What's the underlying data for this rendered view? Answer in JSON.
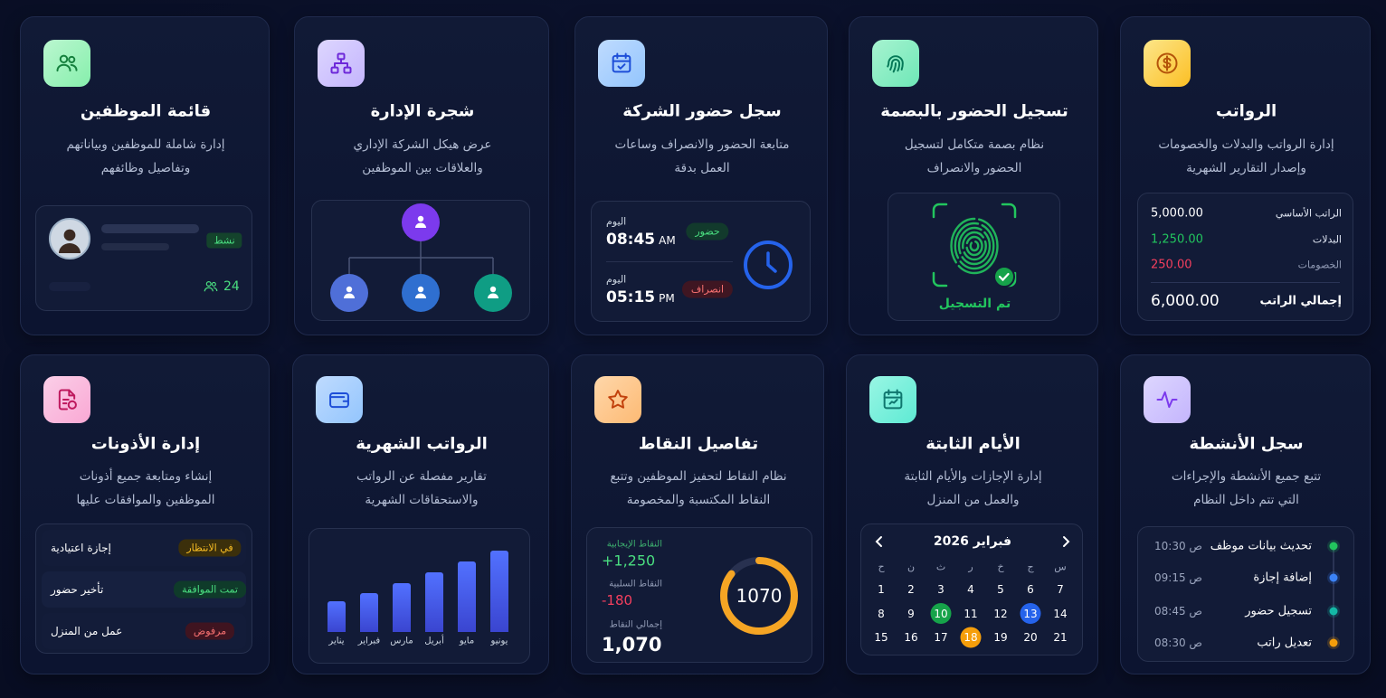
{
  "cards": [
    {
      "title": "الرواتب",
      "description": [
        "إدارة الرواتب والبدلات والخصومات",
        "وإصدار التقارير الشهرية"
      ],
      "icon_colors": [
        "#fde68a",
        "#fbbf24",
        "#b45309"
      ],
      "widget": {
        "kind": "salary",
        "rows": [
          {
            "label": "الراتب الأساسي",
            "value": "5,000.00",
            "color": "#ffffff"
          },
          {
            "label": "البدلات",
            "value": "1,250.00",
            "color": "#22c55e"
          },
          {
            "label": "الخصومات",
            "value": "250.00",
            "color": "#f43f5e"
          }
        ],
        "total": {
          "label": "إجمالي الراتب",
          "value": "6,000.00"
        }
      }
    },
    {
      "title": "تسجيل الحضور بالبصمة",
      "description": [
        "نظام بصمة متكامل لتسجيل",
        "الحضور والانصراف"
      ],
      "icon_colors": [
        "#a7f3d0",
        "#6ee7b7",
        "#047857"
      ],
      "widget": {
        "kind": "fingerprint",
        "status": "تم التسجيل",
        "color": "#22c55e"
      }
    },
    {
      "title": "سجل حضور الشركة",
      "description": [
        "متابعة الحضور والانصراف وساعات",
        "العمل بدقة"
      ],
      "icon_colors": [
        "#bfdbfe",
        "#93c5fd",
        "#1d4ed8"
      ],
      "widget": {
        "kind": "attendance",
        "entries": [
          {
            "day": "اليوم",
            "time": "08:45",
            "period": "AM",
            "status": "حضور",
            "status_color": "#4ade80",
            "status_bg": "#123a2c"
          },
          {
            "day": "اليوم",
            "time": "05:15",
            "period": "PM",
            "status": "انصراف",
            "status_color": "#f87171",
            "status_bg": "#3f1622"
          }
        ],
        "clock_color": "#2563eb"
      }
    },
    {
      "title": "شجرة الإدارة",
      "description": [
        "عرض هيكل الشركة الإداري",
        "والعلاقات بين الموظفين"
      ],
      "icon_colors": [
        "#ddd6fe",
        "#c4b5fd",
        "#6d28d9"
      ],
      "widget": {
        "kind": "tree",
        "root_color": "#7c3aed",
        "child_colors": [
          "#4f6fd8",
          "#2f6fd0",
          "#0f9d84"
        ]
      }
    },
    {
      "title": "قائمة الموظفين",
      "description": [
        "إدارة شاملة للموظفين وبياناتهم",
        "وتفاصيل وظائفهم"
      ],
      "icon_colors": [
        "#bbf7d0",
        "#86efac",
        "#15803d"
      ],
      "widget": {
        "kind": "employees",
        "status": "نشط",
        "count": 24,
        "color": "#4ade80"
      }
    },
    {
      "title": "سجل الأنشطة",
      "description": [
        "تتبع جميع الأنشطة والإجراءات",
        "التي تتم داخل النظام"
      ],
      "icon_colors": [
        "#ddd6fe",
        "#c4b5fd",
        "#7c3aed"
      ],
      "widget": {
        "kind": "activity",
        "items": [
          {
            "text": "تحديث بيانات موظف",
            "time": "ص 10:30",
            "color": "#22c55e"
          },
          {
            "text": "إضافة إجازة",
            "time": "ص 09:15",
            "color": "#3b82f6"
          },
          {
            "text": "تسجيل حضور",
            "time": "ص 08:45",
            "color": "#14b8a6"
          },
          {
            "text": "تعديل راتب",
            "time": "ص 08:30",
            "color": "#f59e0b"
          }
        ]
      }
    },
    {
      "title": "الأيام الثابتة",
      "description": [
        "إدارة الإجازات والأيام الثابتة",
        "والعمل من المنزل"
      ],
      "icon_colors": [
        "#99f6e4",
        "#5eead4",
        "#0f766e"
      ],
      "widget": {
        "kind": "calendar",
        "month": "فبراير 2026",
        "weekdays": [
          "ح",
          "ن",
          "ث",
          "ر",
          "خ",
          "ج",
          "س"
        ],
        "days": [
          1,
          2,
          3,
          4,
          5,
          6,
          7,
          8,
          9,
          {
            "day": 10,
            "color": "#16a34a"
          },
          11,
          12,
          {
            "day": 13,
            "color": "#2563eb"
          },
          14,
          15,
          16,
          17,
          {
            "day": 18,
            "color": "#f59e0b"
          },
          19,
          20,
          21
        ]
      }
    },
    {
      "title": "تفاصيل النقاط",
      "description": [
        "نظام النقاط لتحفيز الموظفين وتتبع",
        "النقاط المكتسبة والمخصومة"
      ],
      "icon_colors": [
        "#fed7aa",
        "#fdba74",
        "#c2410c"
      ],
      "widget": {
        "kind": "points",
        "positive": {
          "label": "النقاط الإيجابية",
          "value": {
            "value": 1250,
            "label": "+1,250"
          },
          "color": "#4ade80"
        },
        "negative": {
          "label": "النقاط السلبية",
          "value": -180,
          "color": "#f43f5e"
        },
        "total": {
          "label": "إجمالي النقاط",
          "value": {
            "value": 1070,
            "label": "1,070"
          }
        },
        "ring_color": "#f5a524"
      }
    },
    {
      "title": "الرواتب الشهرية",
      "description": [
        "تقارير مفصلة عن الرواتب",
        "والاستحقاقات الشهرية"
      ],
      "icon_colors": [
        "#bfdbfe",
        "#93c5fd",
        "#1d4ed8"
      ],
      "widget": {
        "kind": "monthly",
        "categories": [
          "يناير",
          "فبراير",
          "مارس",
          "أبريل",
          "مايو",
          "يونيو"
        ],
        "values": [
          35,
          44,
          56,
          68,
          80,
          93
        ],
        "ylim": [
          0,
          100
        ],
        "color": "#5271ff"
      }
    },
    {
      "title": "إدارة الأذونات",
      "description": [
        "إنشاء ومتابعة جميع أذونات",
        "الموظفين والموافقات عليها"
      ],
      "icon_colors": [
        "#fbcfe8",
        "#f9a8d4",
        "#be185d"
      ],
      "widget": {
        "kind": "permissions",
        "rows": [
          {
            "name": "إجازة اعتيادية",
            "status": "في الانتظار",
            "status_color": "#fbbf24",
            "status_bg": "#3b2f0b"
          },
          {
            "name": "تأخير حضور",
            "status": "تمت الموافقة",
            "status_color": "#4ade80",
            "status_bg": "#0f3b2a"
          },
          {
            "name": "عمل من المنزل",
            "status": "مرفوض",
            "status_color": "#f87171",
            "status_bg": "#3f1420"
          }
        ]
      }
    }
  ]
}
